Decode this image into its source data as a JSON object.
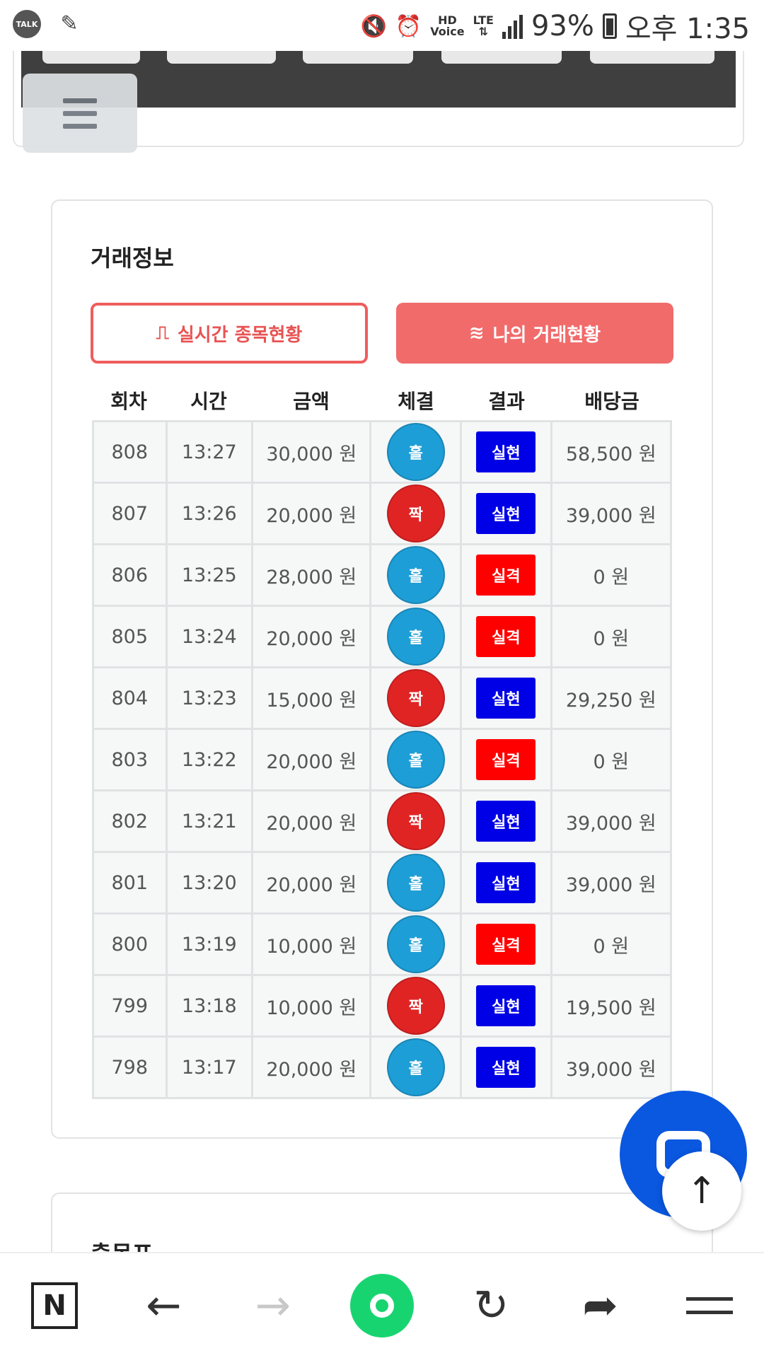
{
  "status_bar": {
    "talk_label": "TALK",
    "hd_label": "HD",
    "voice_label": "Voice",
    "lte_label": "LTE",
    "battery_percent": "93%",
    "time": "오후 1:35"
  },
  "section": {
    "title": "거래정보",
    "btn_realtime": "실시간 종목현황",
    "btn_my": "나의 거래현황"
  },
  "table": {
    "headers": [
      "회차",
      "시간",
      "금액",
      "체결",
      "결과",
      "배당금"
    ],
    "rows": [
      {
        "round": "808",
        "time": "13:27",
        "amount": "30,000 원",
        "pick": "홀",
        "pick_type": "odd",
        "result": "실현",
        "result_type": "win",
        "payout": "58,500 원"
      },
      {
        "round": "807",
        "time": "13:26",
        "amount": "20,000 원",
        "pick": "짝",
        "pick_type": "even",
        "result": "실현",
        "result_type": "win",
        "payout": "39,000 원"
      },
      {
        "round": "806",
        "time": "13:25",
        "amount": "28,000 원",
        "pick": "홀",
        "pick_type": "odd",
        "result": "실격",
        "result_type": "lose",
        "payout": "0 원"
      },
      {
        "round": "805",
        "time": "13:24",
        "amount": "20,000 원",
        "pick": "홀",
        "pick_type": "odd",
        "result": "실격",
        "result_type": "lose",
        "payout": "0 원"
      },
      {
        "round": "804",
        "time": "13:23",
        "amount": "15,000 원",
        "pick": "짝",
        "pick_type": "even",
        "result": "실현",
        "result_type": "win",
        "payout": "29,250 원"
      },
      {
        "round": "803",
        "time": "13:22",
        "amount": "20,000 원",
        "pick": "홀",
        "pick_type": "odd",
        "result": "실격",
        "result_type": "lose",
        "payout": "0 원"
      },
      {
        "round": "802",
        "time": "13:21",
        "amount": "20,000 원",
        "pick": "짝",
        "pick_type": "even",
        "result": "실현",
        "result_type": "win",
        "payout": "39,000 원"
      },
      {
        "round": "801",
        "time": "13:20",
        "amount": "20,000 원",
        "pick": "홀",
        "pick_type": "odd",
        "result": "실현",
        "result_type": "win",
        "payout": "39,000 원"
      },
      {
        "round": "800",
        "time": "13:19",
        "amount": "10,000 원",
        "pick": "홀",
        "pick_type": "odd",
        "result": "실격",
        "result_type": "lose",
        "payout": "0 원"
      },
      {
        "round": "799",
        "time": "13:18",
        "amount": "10,000 원",
        "pick": "짝",
        "pick_type": "even",
        "result": "실현",
        "result_type": "win",
        "payout": "19,500 원"
      },
      {
        "round": "798",
        "time": "13:17",
        "amount": "20,000 원",
        "pick": "홀",
        "pick_type": "odd",
        "result": "실현",
        "result_type": "win",
        "payout": "39,000 원"
      }
    ]
  },
  "lower_section": {
    "title": "출목표"
  },
  "colors": {
    "accent_red": "#f16b6b",
    "odd_blue": "#1e9ed6",
    "even_red": "#e02424",
    "win_blue": "#0000e6",
    "lose_red": "#ff0000",
    "chat_blue": "#0a57e0",
    "home_green": "#18d470"
  },
  "icons": {
    "status_left": [
      "kakaotalk-icon",
      "app-icon"
    ],
    "status_right": [
      "mute-icon",
      "alarm-icon",
      "signal-icon",
      "battery-icon"
    ],
    "bottom": [
      "naver-n-icon",
      "back-arrow-icon",
      "forward-arrow-icon",
      "home-icon",
      "refresh-icon",
      "share-icon",
      "menu-icon"
    ]
  }
}
